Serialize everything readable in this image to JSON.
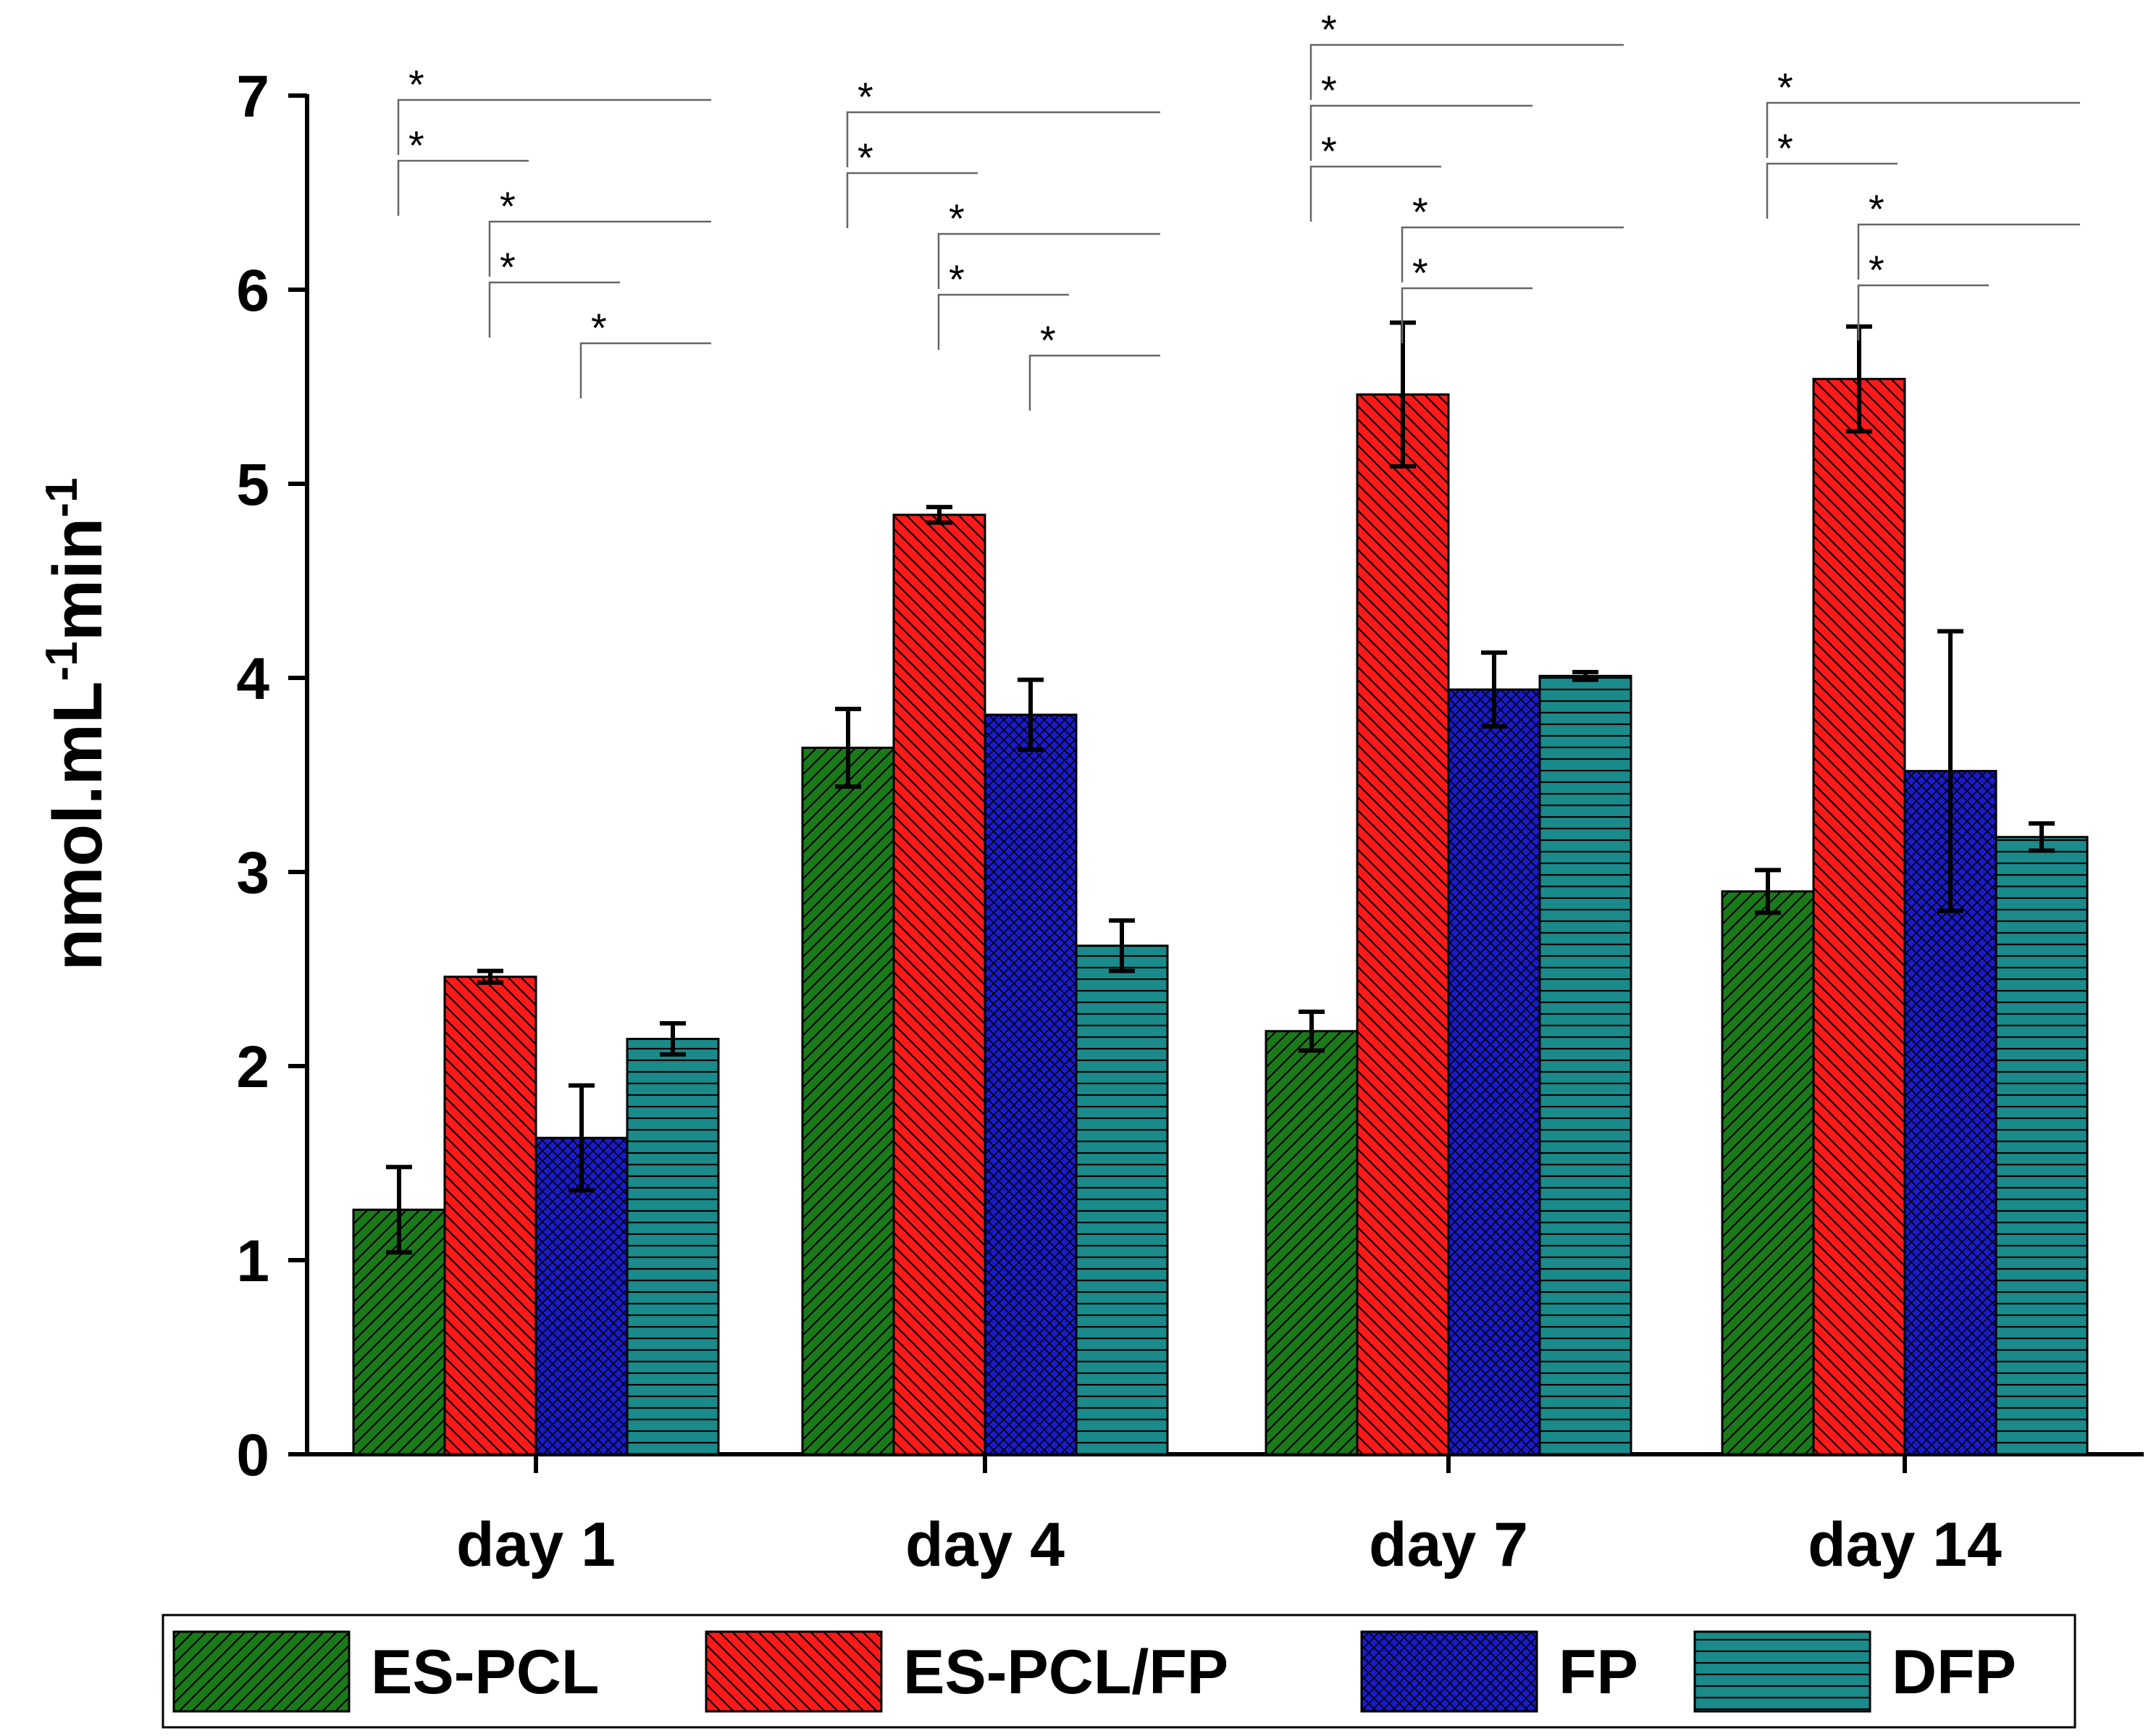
{
  "chart_data": {
    "type": "bar",
    "ylabel": "nmol.mL-1min-1",
    "ylabel_parts": {
      "unit1": "nmol.mL",
      "exp1": "-1",
      "unit2": "min",
      "exp2": "-1"
    },
    "ylim": [
      0,
      7
    ],
    "yticks": [
      "0",
      "1",
      "2",
      "3",
      "4",
      "5",
      "6",
      "7"
    ],
    "categories": [
      "day 1",
      "day 4",
      "day 7",
      "day 14"
    ],
    "series": [
      {
        "name": "ES-PCL",
        "color": "#1a7a1a",
        "pattern": "diag-up",
        "values": [
          1.26,
          3.64,
          2.18,
          2.9
        ],
        "errors": [
          0.22,
          0.2,
          0.1,
          0.11
        ]
      },
      {
        "name": "ES-PCL/FP",
        "color": "#ff1a1a",
        "pattern": "diag-down",
        "values": [
          2.46,
          4.84,
          5.46,
          5.54
        ],
        "errors": [
          0.03,
          0.04,
          0.37,
          0.27
        ]
      },
      {
        "name": "FP",
        "color": "#1a1acc",
        "pattern": "cross",
        "values": [
          1.63,
          3.81,
          3.94,
          3.52
        ],
        "errors": [
          0.27,
          0.18,
          0.19,
          0.72
        ]
      },
      {
        "name": "DFP",
        "color": "#1a8a8a",
        "pattern": "horizontal",
        "values": [
          2.14,
          2.62,
          4.01,
          3.18
        ],
        "errors": [
          0.08,
          0.13,
          0.02,
          0.07
        ]
      }
    ],
    "significance": [
      {
        "category": 0,
        "from": 0,
        "to": 3,
        "label": "*"
      },
      {
        "category": 0,
        "from": 0,
        "to": 1,
        "label": "*"
      },
      {
        "category": 0,
        "from": 1,
        "to": 3,
        "label": "*"
      },
      {
        "category": 0,
        "from": 1,
        "to": 2,
        "label": "*"
      },
      {
        "category": 0,
        "from": 2,
        "to": 3,
        "label": "*"
      },
      {
        "category": 1,
        "from": 0,
        "to": 3,
        "label": "*"
      },
      {
        "category": 1,
        "from": 0,
        "to": 1,
        "label": "*"
      },
      {
        "category": 1,
        "from": 1,
        "to": 3,
        "label": "*"
      },
      {
        "category": 1,
        "from": 1,
        "to": 2,
        "label": "*"
      },
      {
        "category": 1,
        "from": 2,
        "to": 3,
        "label": "*"
      },
      {
        "category": 2,
        "from": 0,
        "to": 3,
        "label": "*"
      },
      {
        "category": 2,
        "from": 0,
        "to": 2,
        "label": "*"
      },
      {
        "category": 2,
        "from": 0,
        "to": 1,
        "label": "*"
      },
      {
        "category": 2,
        "from": 1,
        "to": 3,
        "label": "*"
      },
      {
        "category": 2,
        "from": 1,
        "to": 2,
        "label": "*"
      },
      {
        "category": 3,
        "from": 0,
        "to": 3,
        "label": "*"
      },
      {
        "category": 3,
        "from": 0,
        "to": 1,
        "label": "*"
      },
      {
        "category": 3,
        "from": 1,
        "to": 3,
        "label": "*"
      },
      {
        "category": 3,
        "from": 1,
        "to": 2,
        "label": "*"
      }
    ],
    "legend": {
      "position": "bottom",
      "entries": [
        "ES-PCL",
        "ES-PCL/FP",
        "FP",
        "DFP"
      ]
    }
  }
}
